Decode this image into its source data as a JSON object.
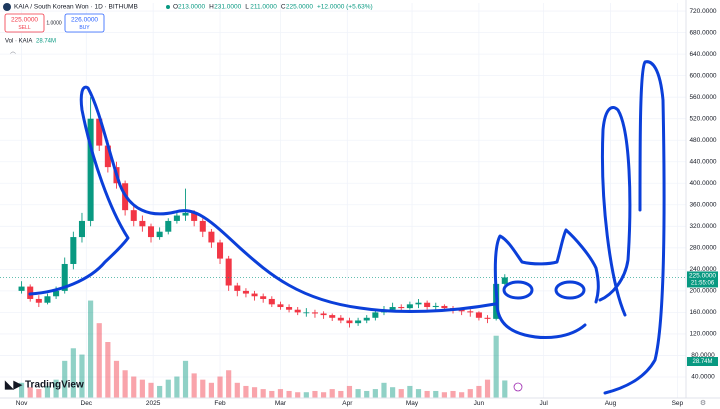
{
  "chart_data": {
    "type": "candlestick",
    "title": "KAIA / South Korean Won · 1D · BITHUMB",
    "ohlc_header": [
      {
        "key": "O",
        "text": "213.0000"
      },
      {
        "key": "H",
        "text": "231.0000"
      },
      {
        "key": "L",
        "text": "211.0000"
      },
      {
        "key": "C",
        "text": "225.0000"
      }
    ],
    "change": "+12.0000 (+5.63%)",
    "sell": {
      "price": "225.0000",
      "label": "SELL"
    },
    "spread": "1.0000",
    "buy": {
      "price": "226.0000",
      "label": "BUY"
    },
    "volume_title": "Vol · KAIA",
    "volume_last": "28.74M",
    "last_price": {
      "value": 225,
      "label": "225.0000"
    },
    "countdown": "21:55:06",
    "logo": "TradingView",
    "up_color": "#089981",
    "down_color": "#f23645",
    "categories": [
      null,
      null,
      null,
      null,
      null,
      null,
      null,
      null,
      null,
      null,
      null,
      null,
      null,
      null,
      null,
      null,
      null,
      null,
      null,
      null,
      null,
      null,
      null,
      null,
      null,
      null,
      null,
      null,
      null,
      null,
      null,
      null,
      null,
      null,
      null,
      null,
      null,
      null,
      null,
      null,
      null,
      null,
      null,
      null,
      null,
      null,
      null,
      null,
      null,
      null,
      null,
      null,
      null,
      null,
      null,
      null,
      null
    ],
    "open": [
      200,
      208,
      185,
      178,
      190,
      200,
      250,
      300,
      330,
      520,
      470,
      430,
      400,
      350,
      330,
      320,
      300,
      310,
      330,
      340,
      345,
      330,
      310,
      290,
      260,
      210,
      200,
      195,
      190,
      185,
      175,
      170,
      165,
      160,
      160,
      158,
      155,
      150,
      145,
      140,
      145,
      150,
      160,
      165,
      170,
      168,
      175,
      178,
      170,
      172,
      168,
      165,
      162,
      160,
      150,
      148,
      213
    ],
    "high": [
      218,
      212,
      192,
      195,
      208,
      262,
      310,
      345,
      560,
      525,
      480,
      440,
      405,
      360,
      340,
      325,
      318,
      335,
      348,
      390,
      350,
      335,
      315,
      295,
      265,
      215,
      205,
      200,
      195,
      190,
      180,
      175,
      170,
      168,
      165,
      162,
      158,
      155,
      150,
      150,
      155,
      165,
      172,
      178,
      175,
      180,
      185,
      182,
      178,
      175,
      172,
      168,
      166,
      162,
      155,
      245,
      231
    ],
    "low": [
      195,
      180,
      170,
      175,
      185,
      195,
      240,
      290,
      320,
      460,
      420,
      390,
      340,
      320,
      310,
      290,
      295,
      305,
      325,
      330,
      320,
      300,
      280,
      250,
      200,
      190,
      188,
      182,
      178,
      170,
      165,
      160,
      155,
      152,
      150,
      148,
      144,
      140,
      132,
      135,
      140,
      145,
      155,
      162,
      160,
      165,
      168,
      165,
      165,
      162,
      158,
      155,
      152,
      145,
      140,
      145,
      211
    ],
    "close": [
      208,
      185,
      178,
      190,
      200,
      250,
      300,
      330,
      520,
      470,
      430,
      400,
      350,
      330,
      320,
      300,
      310,
      330,
      340,
      345,
      330,
      310,
      290,
      260,
      210,
      200,
      195,
      190,
      185,
      175,
      170,
      165,
      160,
      160,
      158,
      155,
      150,
      145,
      140,
      145,
      150,
      160,
      165,
      170,
      168,
      175,
      178,
      170,
      172,
      168,
      165,
      162,
      160,
      150,
      148,
      213,
      225
    ],
    "volume": [
      25,
      18,
      15,
      20,
      30,
      60,
      80,
      70,
      156,
      120,
      90,
      60,
      45,
      35,
      30,
      25,
      20,
      30,
      35,
      60,
      40,
      30,
      25,
      35,
      45,
      25,
      20,
      18,
      15,
      12,
      15,
      12,
      10,
      10,
      12,
      10,
      15,
      12,
      20,
      15,
      12,
      15,
      25,
      18,
      15,
      20,
      15,
      12,
      12,
      10,
      12,
      10,
      15,
      20,
      30,
      100,
      28.74
    ],
    "y2lim": [
      0,
      630
    ],
    "xlim": [
      -2.5,
      77
    ],
    "xticks": [
      {
        "value": 0,
        "label": "Nov"
      },
      {
        "value": 7.5,
        "label": "Dec"
      },
      {
        "value": 15.25,
        "label": "2025"
      },
      {
        "value": 23,
        "label": "Feb"
      },
      {
        "value": 30,
        "label": "Mar"
      },
      {
        "value": 37.75,
        "label": "Apr"
      },
      {
        "value": 45.25,
        "label": "May"
      },
      {
        "value": 53,
        "label": "Jun"
      },
      {
        "value": 60.5,
        "label": "Jul"
      },
      {
        "value": 68.25,
        "label": "Aug"
      },
      {
        "value": 76,
        "label": "Sep"
      }
    ],
    "ylim": [
      0,
      735
    ],
    "yticks": [
      {
        "value": 40,
        "label": "40.0000"
      },
      {
        "value": 80,
        "label": "80.0000"
      },
      {
        "value": 120,
        "label": "120.0000"
      },
      {
        "value": 160,
        "label": "160.0000"
      },
      {
        "value": 200,
        "label": "200.0000"
      },
      {
        "value": 240,
        "label": "240.0000"
      },
      {
        "value": 280,
        "label": "280.0000"
      },
      {
        "value": 320,
        "label": "320.0000"
      },
      {
        "value": 360,
        "label": "360.0000"
      },
      {
        "value": 400,
        "label": "400.0000"
      },
      {
        "value": 440,
        "label": "440.0000"
      },
      {
        "value": 480,
        "label": "480.0000"
      },
      {
        "value": 520,
        "label": "520.0000"
      },
      {
        "value": 560,
        "label": "560.0000"
      },
      {
        "value": 600,
        "label": "600.0000"
      },
      {
        "value": 640,
        "label": "640.0000"
      },
      {
        "value": 680,
        "label": "680.0000"
      },
      {
        "value": 720,
        "label": "720.0000"
      }
    ]
  }
}
